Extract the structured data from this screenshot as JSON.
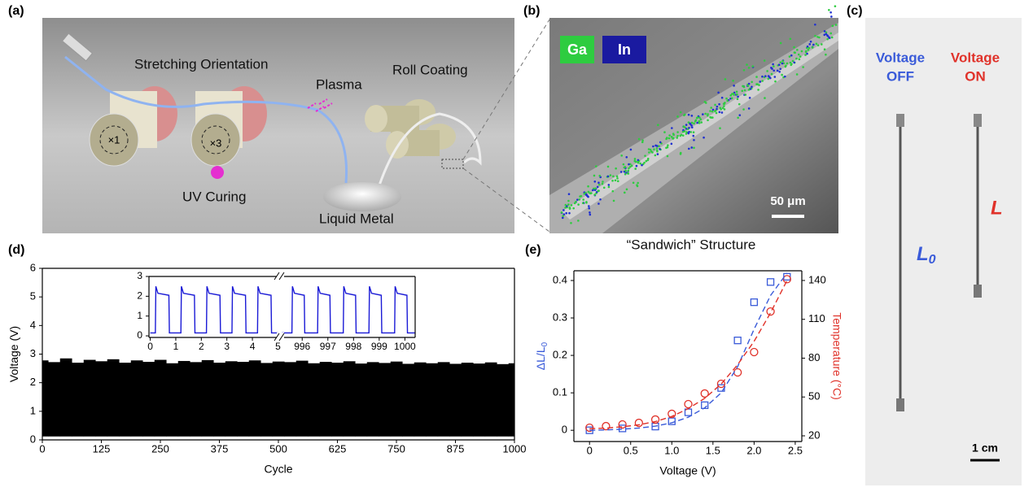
{
  "panels": {
    "a": {
      "label": "(a)",
      "stretching": "Stretching Orientation",
      "plasma": "Plasma",
      "roll": "Roll Coating",
      "x1": "×1",
      "x3": "×3",
      "uv": "UV Curing",
      "metal": "Liquid Metal"
    },
    "b": {
      "label": "(b)",
      "ga": "Ga",
      "in": "In",
      "scale": "50 μm",
      "caption": "“Sandwich” Structure"
    },
    "c": {
      "label": "(c)",
      "off": [
        "Voltage",
        "OFF"
      ],
      "on": [
        "Voltage",
        "ON"
      ],
      "l0": "L",
      "l0_sub": "0",
      "l": "L",
      "scale": "1 cm"
    },
    "d": {
      "label": "(d)"
    },
    "e": {
      "label": "(e)"
    }
  },
  "chart_data": [
    {
      "type": "area",
      "xlabel": "Cycle",
      "ylabel": "Voltage (V)",
      "color": "#000000",
      "xlim": [
        0,
        1000
      ],
      "xticks": [
        0,
        125,
        250,
        375,
        500,
        625,
        750,
        875,
        1000
      ],
      "ylim": [
        0,
        6
      ],
      "yticks": [
        0,
        1,
        2,
        3,
        4,
        5,
        6
      ],
      "x": [
        0,
        25,
        50,
        75,
        100,
        125,
        150,
        175,
        200,
        225,
        250,
        275,
        300,
        325,
        350,
        375,
        400,
        425,
        450,
        475,
        500,
        525,
        550,
        575,
        600,
        625,
        650,
        675,
        700,
        725,
        750,
        775,
        800,
        825,
        850,
        875,
        900,
        925,
        950,
        975,
        1000
      ],
      "series": [
        {
          "values": [
            2.78,
            2.72,
            2.85,
            2.7,
            2.8,
            2.75,
            2.82,
            2.7,
            2.78,
            2.73,
            2.8,
            2.68,
            2.76,
            2.72,
            2.79,
            2.7,
            2.75,
            2.73,
            2.78,
            2.69,
            2.74,
            2.72,
            2.77,
            2.68,
            2.73,
            2.7,
            2.75,
            2.67,
            2.72,
            2.69,
            2.74,
            2.66,
            2.71,
            2.68,
            2.72,
            2.66,
            2.7,
            2.67,
            2.71,
            2.65,
            2.68
          ],
          "lows": [
            0.12,
            0.12,
            0.12,
            0.12,
            0.12,
            0.12,
            0.12,
            0.12,
            0.12,
            0.12,
            0.12,
            0.12,
            0.12,
            0.12,
            0.12,
            0.12,
            0.12,
            0.12,
            0.12,
            0.12,
            0.12,
            0.12,
            0.12,
            0.12,
            0.12,
            0.12,
            0.12,
            0.12,
            0.12,
            0.12,
            0.12,
            0.12,
            0.12,
            0.12,
            0.12,
            0.12,
            0.12,
            0.12,
            0.12,
            0.12,
            0.12
          ]
        }
      ]
    },
    {
      "type": "line",
      "color": "#1a1ad6",
      "xlim": [
        -0.05,
        5.05
      ],
      "xticks": [
        0,
        1,
        2,
        3,
        4,
        5
      ],
      "ylim": [
        -0.08,
        3
      ],
      "yticks": [
        0,
        1,
        2,
        3
      ],
      "x": [
        0,
        0.2,
        0.22,
        0.3,
        0.73,
        0.75,
        1.2,
        1.22,
        1.3,
        1.73,
        1.75,
        2.2,
        2.22,
        2.3,
        2.73,
        2.75,
        3.2,
        3.22,
        3.3,
        3.73,
        3.75,
        4.2,
        4.22,
        4.3,
        4.73,
        4.75,
        5
      ],
      "values": [
        0.15,
        0.15,
        2.5,
        2.15,
        2.05,
        0.15,
        0.15,
        2.5,
        2.15,
        2.05,
        0.15,
        0.15,
        2.5,
        2.15,
        2.05,
        0.15,
        0.15,
        2.5,
        2.15,
        2.05,
        0.15,
        0.15,
        2.5,
        2.15,
        2.05,
        0.15,
        0.15
      ]
    },
    {
      "type": "line",
      "color": "#1a1ad6",
      "xlim": [
        995.2,
        1000.4
      ],
      "xticks": [
        996,
        997,
        998,
        999,
        1000
      ],
      "ylim": [
        -0.08,
        3
      ],
      "x": [
        995.2,
        995.6,
        995.62,
        995.7,
        996.08,
        996.1,
        996.6,
        996.62,
        996.7,
        997.08,
        997.1,
        997.6,
        997.62,
        997.7,
        998.08,
        998.1,
        998.6,
        998.62,
        998.7,
        999.08,
        999.1,
        999.6,
        999.62,
        999.7,
        1000.08,
        1000.1,
        1000.4
      ],
      "values": [
        0.15,
        0.15,
        2.5,
        2.15,
        2.05,
        0.15,
        0.15,
        2.5,
        2.15,
        2.05,
        0.15,
        0.15,
        2.5,
        2.15,
        2.05,
        0.15,
        0.15,
        2.5,
        2.15,
        2.05,
        0.15,
        0.15,
        2.5,
        2.15,
        2.05,
        0.15,
        0.15
      ]
    },
    {
      "type": "scatter",
      "xlabel": "Voltage (V)",
      "ylabel": "ΔL/L",
      "ylabel_sub": "0",
      "y2label": "Temperature (°C)",
      "ycolor": "#3a5bd9",
      "y2color": "#e0322a",
      "xlim": [
        -0.19,
        2.58
      ],
      "xticks": [
        0,
        {
          "value": 0.5,
          "label": "0.5"
        },
        {
          "value": 1,
          "label": "1.0"
        },
        1.5,
        {
          "value": 2,
          "label": "2.0"
        },
        2.5
      ],
      "ylim": [
        -0.03,
        0.426
      ],
      "yticks": [
        0,
        0.1,
        0.2,
        0.3,
        0.4
      ],
      "y2lim": [
        15.6,
        147.5
      ],
      "y2ticks": [
        20,
        50,
        80,
        110,
        140
      ],
      "series": [
        {
          "color": "#3a5bd9",
          "marker": "square",
          "x": [
            0,
            0.4,
            0.8,
            1,
            1.2,
            1.4,
            1.6,
            1.8,
            2,
            2.2,
            2.4
          ],
          "values": [
            0,
            0.005,
            0.01,
            0.024,
            0.048,
            0.067,
            0.113,
            0.24,
            0.342,
            0.396,
            0.41
          ]
        },
        {
          "color": "#e0322a",
          "marker": "circle",
          "axis": "y2",
          "x": [
            0,
            0.2,
            0.4,
            0.6,
            0.8,
            1,
            1.2,
            1.4,
            1.6,
            1.8,
            2,
            2.2,
            2.4
          ],
          "values": [
            26.3,
            27.5,
            28.8,
            30,
            32.6,
            37,
            44.5,
            52.7,
            60.2,
            69,
            84.7,
            116,
            141
          ]
        },
        {
          "color": "#3a5bd9",
          "style": "dashed",
          "x": [
            0,
            0.2,
            0.4,
            0.6,
            0.8,
            1,
            1.2,
            1.4,
            1.6,
            1.8,
            2,
            2.2,
            2.4
          ],
          "values": [
            0,
            0.001,
            0.003,
            0.006,
            0.011,
            0.02,
            0.035,
            0.06,
            0.1,
            0.17,
            0.27,
            0.36,
            0.42
          ]
        },
        {
          "color": "#e0322a",
          "style": "dashed",
          "axis": "y2",
          "x": [
            0,
            0.2,
            0.4,
            0.6,
            0.8,
            1,
            1.2,
            1.4,
            1.6,
            1.8,
            2,
            2.2,
            2.4
          ],
          "values": [
            25.5,
            26,
            27,
            28.5,
            31,
            35,
            41,
            49,
            60,
            75,
            93,
            115,
            140
          ]
        }
      ]
    }
  ]
}
